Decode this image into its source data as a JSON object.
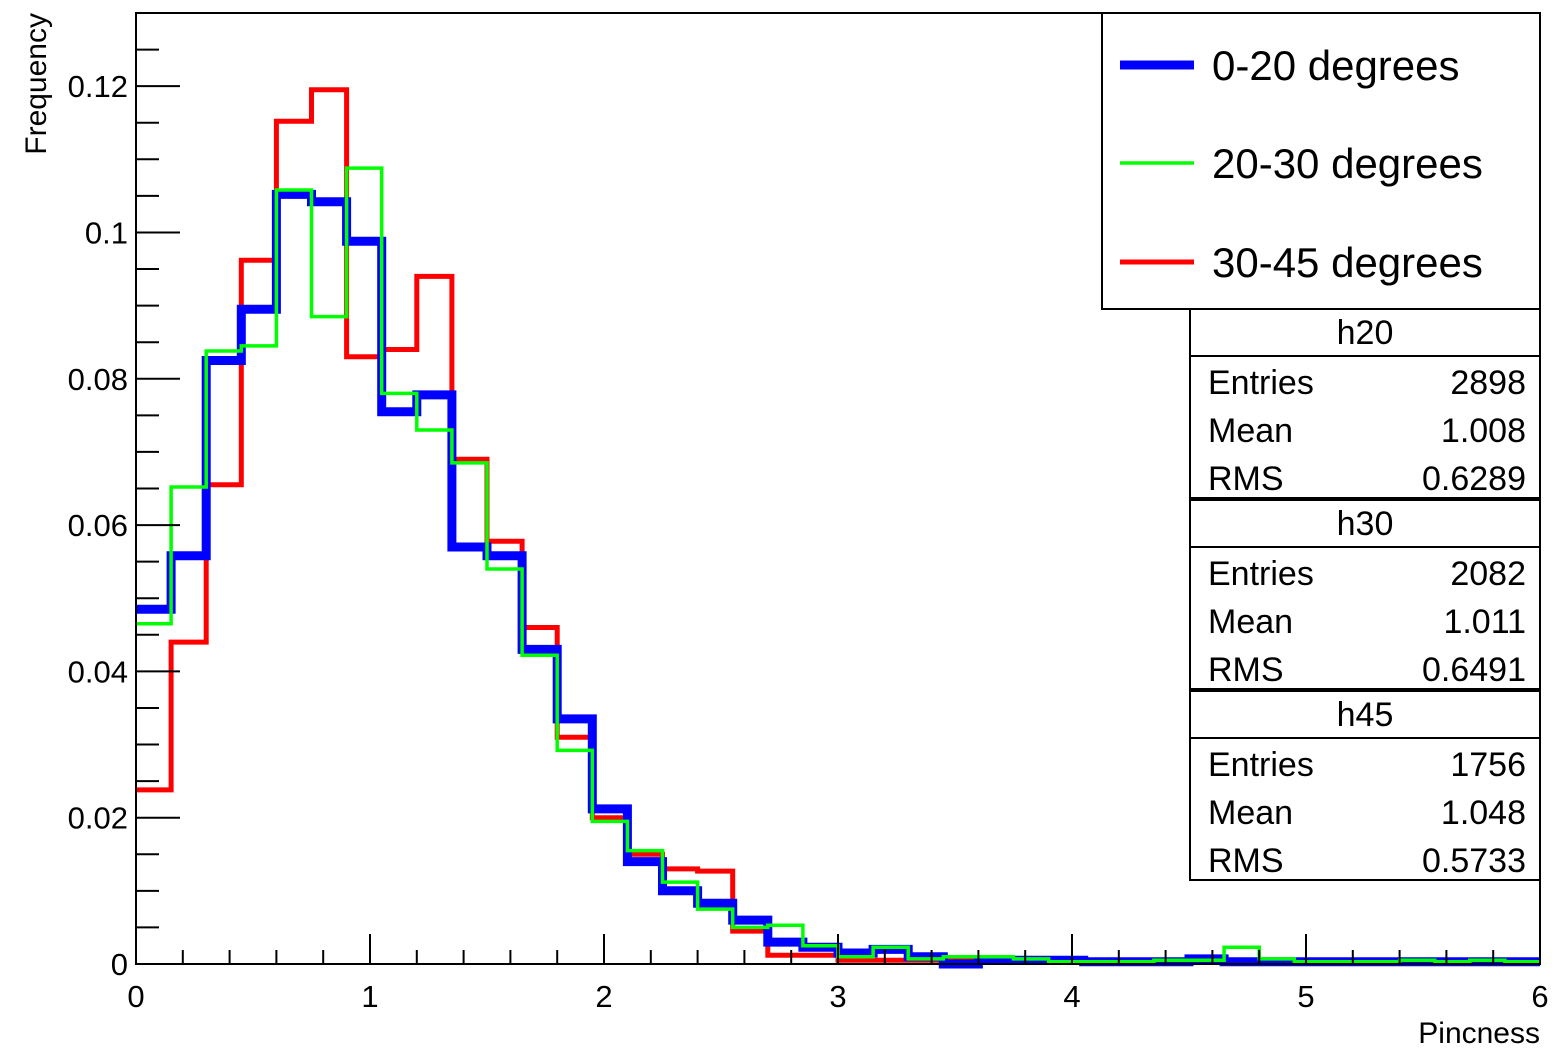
{
  "chart_data": {
    "type": "line",
    "xlabel": "Pincness",
    "ylabel": "Frequency",
    "xlim": [
      0,
      6
    ],
    "ylim": [
      0,
      0.13
    ],
    "grid": false,
    "legend_placement": "top-right",
    "x_ticks": [
      "0",
      "1",
      "2",
      "3",
      "4",
      "5",
      "6"
    ],
    "y_ticks": [
      "0",
      "0.02",
      "0.04",
      "0.06",
      "0.08",
      "0.1",
      "0.12"
    ],
    "bin_edges": [
      0,
      0.15,
      0.3,
      0.45,
      0.6,
      0.75,
      0.9,
      1.05,
      1.2,
      1.35,
      1.5,
      1.65,
      1.8,
      1.95,
      2.1,
      2.25,
      2.4,
      2.55,
      2.7,
      2.85,
      3.0,
      3.15,
      3.3,
      3.45,
      3.6,
      3.75,
      3.9,
      4.05,
      4.2,
      4.35,
      4.5,
      4.65,
      4.8,
      4.95,
      5.1,
      5.25,
      5.4,
      5.55,
      5.7,
      5.85,
      6.0
    ],
    "series": [
      {
        "name": "0-20 degrees",
        "color": "#0000ff",
        "values": [
          0.0485,
          0.0558,
          0.0825,
          0.0895,
          0.1052,
          0.1042,
          0.0988,
          0.0755,
          0.0778,
          0.057,
          0.0558,
          0.043,
          0.0335,
          0.0212,
          0.014,
          0.01,
          0.0083,
          0.006,
          0.003,
          0.0023,
          0.0015,
          0.002,
          0.001,
          0.0,
          0.0005,
          0.0005,
          0.0005,
          0.0003,
          0.0003,
          0.0003,
          0.0007,
          0.0003,
          0.0003,
          0.0003,
          0.0003,
          0.0003,
          0.0003,
          0.0003,
          0.0003,
          0.0003
        ]
      },
      {
        "name": "20-30 degrees",
        "color": "#00ff00",
        "values": [
          0.0465,
          0.0652,
          0.0838,
          0.0845,
          0.1058,
          0.0885,
          0.1088,
          0.078,
          0.073,
          0.0685,
          0.054,
          0.0422,
          0.0292,
          0.0195,
          0.0155,
          0.0112,
          0.0075,
          0.005,
          0.0053,
          0.0025,
          0.001,
          0.0023,
          0.0007,
          0.001,
          0.001,
          0.0007,
          0.0003,
          0.0003,
          0.0003,
          0.0005,
          0.0005,
          0.0023,
          0.0007,
          0.0003,
          0.0003,
          0.0003,
          0.0005,
          0.0003,
          0.0005,
          0.0003
        ]
      },
      {
        "name": "30-45 degrees",
        "color": "#ff0000",
        "values": [
          0.0238,
          0.044,
          0.0655,
          0.0962,
          0.1152,
          0.1195,
          0.083,
          0.084,
          0.094,
          0.069,
          0.0578,
          0.046,
          0.031,
          0.02,
          0.015,
          0.013,
          0.0127,
          0.0045,
          0.0012,
          0.0012,
          0.0005,
          0.0005,
          0.0005,
          0.0005,
          0.0003,
          0.0003,
          0.0003,
          0.0003,
          0.0003,
          0.0003,
          0.0003,
          0.0003,
          0.0003,
          0.0003,
          0.0003,
          0.0003,
          0.0003,
          0.0003,
          0.0003,
          0.0003
        ]
      }
    ],
    "stats": [
      {
        "name": "h20",
        "rows": [
          {
            "label": "Entries",
            "value": "2898"
          },
          {
            "label": "Mean",
            "value": "1.008"
          },
          {
            "label": "RMS",
            "value": "0.6289"
          }
        ]
      },
      {
        "name": "h30",
        "rows": [
          {
            "label": "Entries",
            "value": "2082"
          },
          {
            "label": "Mean",
            "value": "1.011"
          },
          {
            "label": "RMS",
            "value": "0.6491"
          }
        ]
      },
      {
        "name": "h45",
        "rows": [
          {
            "label": "Entries",
            "value": "1756"
          },
          {
            "label": "Mean",
            "value": "1.048"
          },
          {
            "label": "RMS",
            "value": "0.5733"
          }
        ]
      }
    ]
  }
}
